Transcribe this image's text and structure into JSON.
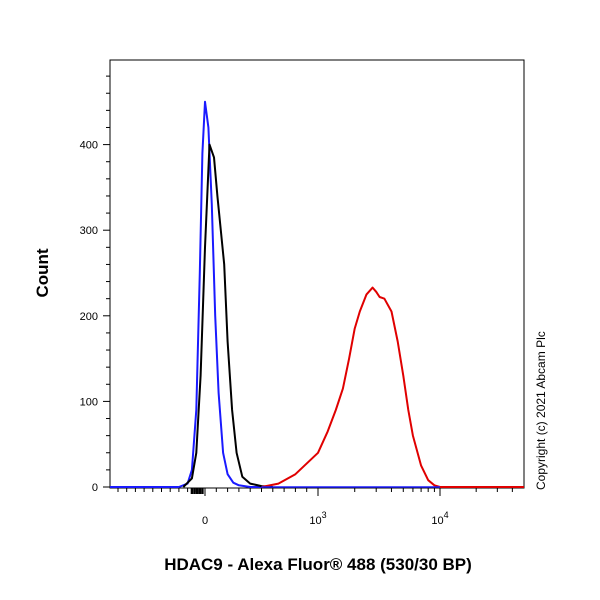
{
  "chart_data": {
    "type": "line",
    "xlabel": "HDAC9 - Alexa Fluor® 488 (530/30 BP)",
    "ylabel": "Count",
    "x_scale": "biexponential",
    "ylim": [
      0,
      500
    ],
    "y_ticks": [
      0,
      100,
      200,
      300,
      400
    ],
    "x_tick_labels": [
      {
        "base": "0",
        "exp": ""
      },
      {
        "base": "10",
        "exp": "3"
      },
      {
        "base": "10",
        "exp": "4"
      }
    ],
    "grid": false,
    "annotation": "Copyright (c) 2021 Abcam Plc",
    "series": [
      {
        "color": "#1a1aff",
        "x": [
          -300,
          -200,
          -150,
          -100,
          -60,
          -30,
          0,
          30,
          60,
          90,
          120,
          160,
          200,
          250,
          300,
          400,
          500
        ],
        "values": [
          0,
          4,
          20,
          90,
          250,
          390,
          450,
          420,
          330,
          200,
          110,
          40,
          15,
          5,
          2,
          0,
          0
        ]
      },
      {
        "color": "#000000",
        "x": [
          -250,
          -150,
          -100,
          -50,
          0,
          40,
          80,
          110,
          140,
          170,
          200,
          240,
          280,
          330,
          400,
          500,
          600
        ],
        "values": [
          0,
          10,
          40,
          130,
          280,
          400,
          385,
          340,
          300,
          260,
          170,
          90,
          40,
          12,
          4,
          1,
          0
        ]
      },
      {
        "color": "#e00000",
        "x": [
          500,
          650,
          800,
          1000,
          1200,
          1400,
          1600,
          1800,
          2000,
          2200,
          2500,
          2800,
          3000,
          3200,
          3500,
          4000,
          4500,
          5000,
          5500,
          6000,
          7000,
          8000,
          9000,
          10000
        ],
        "values": [
          0,
          4,
          15,
          40,
          65,
          90,
          115,
          150,
          185,
          205,
          225,
          233,
          228,
          222,
          220,
          205,
          170,
          130,
          90,
          60,
          25,
          8,
          2,
          0
        ]
      }
    ]
  }
}
